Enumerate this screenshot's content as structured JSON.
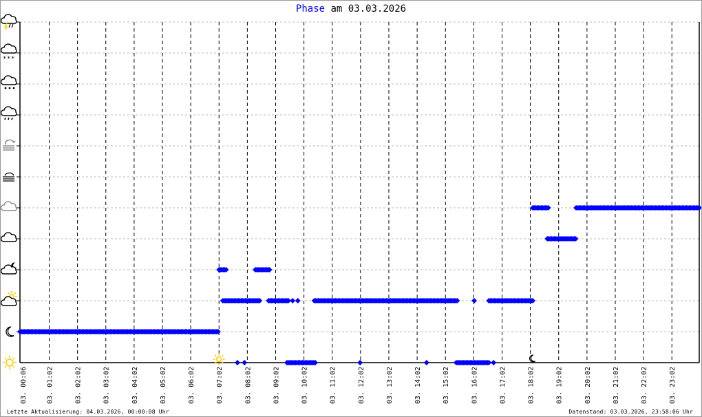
{
  "chart_data": {
    "type": "scatter",
    "title": {
      "highlight": "Phase",
      "rest": " am 03.03.2026"
    },
    "x_unit": "time of day (HH:MM) on 03.03.2026",
    "xlim": [
      "00:00",
      "24:00"
    ],
    "x_tick_labels": [
      "03. 00:06",
      "03. 01:02",
      "03. 02:02",
      "03. 03:02",
      "03. 04:02",
      "03. 05:02",
      "03. 06:02",
      "03. 07:02",
      "03. 08:02",
      "03. 09:02",
      "03. 10:02",
      "03. 11:02",
      "03. 12:02",
      "03. 13:02",
      "03. 14:02",
      "03. 15:02",
      "03. 16:02",
      "03. 17:02",
      "03. 18:02",
      "03. 19:02",
      "03. 20:02",
      "03. 21:02",
      "03. 22:02",
      "03. 23:02"
    ],
    "y_levels": [
      {
        "level": 0,
        "icon": "sun-icon"
      },
      {
        "level": 1,
        "icon": "moon-icon"
      },
      {
        "level": 2,
        "icon": "cloud-sun-icon"
      },
      {
        "level": 3,
        "icon": "cloud-moon-icon"
      },
      {
        "level": 4,
        "icon": "cloud-icon"
      },
      {
        "level": 5,
        "icon": "cloud-gray-icon"
      },
      {
        "level": 6,
        "icon": "fog-icon"
      },
      {
        "level": 7,
        "icon": "fog-cloud-icon"
      },
      {
        "level": 8,
        "icon": "rain-cloud-icon"
      },
      {
        "level": 9,
        "icon": "sleet-cloud-icon"
      },
      {
        "level": 10,
        "icon": "snow-cloud-icon"
      },
      {
        "level": 11,
        "icon": "thunderstorm-icon"
      }
    ],
    "ylim": [
      0,
      11
    ],
    "grid": {
      "vertical": "dashed black",
      "horizontal": "dotted gray"
    },
    "marker": "diamond",
    "marker_color": "#0000ff",
    "segments": [
      {
        "level": 1,
        "start": "00:00",
        "end": "07:02"
      },
      {
        "level": 3,
        "start": "07:02",
        "end": "07:18"
      },
      {
        "level": 2,
        "start": "07:10",
        "end": "08:29"
      },
      {
        "level": 0,
        "start": "07:41",
        "end": "07:41"
      },
      {
        "level": 0,
        "start": "07:56",
        "end": "07:56"
      },
      {
        "level": 3,
        "start": "08:19",
        "end": "08:50"
      },
      {
        "level": 2,
        "start": "08:47",
        "end": "09:29"
      },
      {
        "level": 0,
        "start": "09:26",
        "end": "10:26"
      },
      {
        "level": 2,
        "start": "09:38",
        "end": "09:38"
      },
      {
        "level": 2,
        "start": "09:49",
        "end": "09:49"
      },
      {
        "level": 2,
        "start": "10:24",
        "end": "15:28"
      },
      {
        "level": 0,
        "start": "12:01",
        "end": "12:01"
      },
      {
        "level": 0,
        "start": "14:22",
        "end": "14:22"
      },
      {
        "level": 0,
        "start": "15:25",
        "end": "16:36"
      },
      {
        "level": 2,
        "start": "16:03",
        "end": "16:03"
      },
      {
        "level": 0,
        "start": "16:44",
        "end": "16:44"
      },
      {
        "level": 2,
        "start": "16:34",
        "end": "18:07"
      },
      {
        "level": 5,
        "start": "18:07",
        "end": "18:42"
      },
      {
        "level": 4,
        "start": "18:38",
        "end": "19:40"
      },
      {
        "level": 5,
        "start": "19:39",
        "end": "24:00"
      }
    ],
    "annotations": [
      {
        "time": "07:02",
        "icon": "sunrise-sun-icon"
      },
      {
        "time": "18:02",
        "icon": "sunset-moon-icon"
      }
    ],
    "colors": {
      "title_highlight": "#0000ff",
      "marker": "#0000ff",
      "sun": "#ffcc00",
      "grid_h": "#bbbbbb"
    }
  },
  "footer": {
    "last_update": "Letzte Aktualisierung: 04.03.2026, 00:00:08 Uhr",
    "data_state": "Datenstand: 03.03.2026, 23:58:06 Uhr"
  }
}
